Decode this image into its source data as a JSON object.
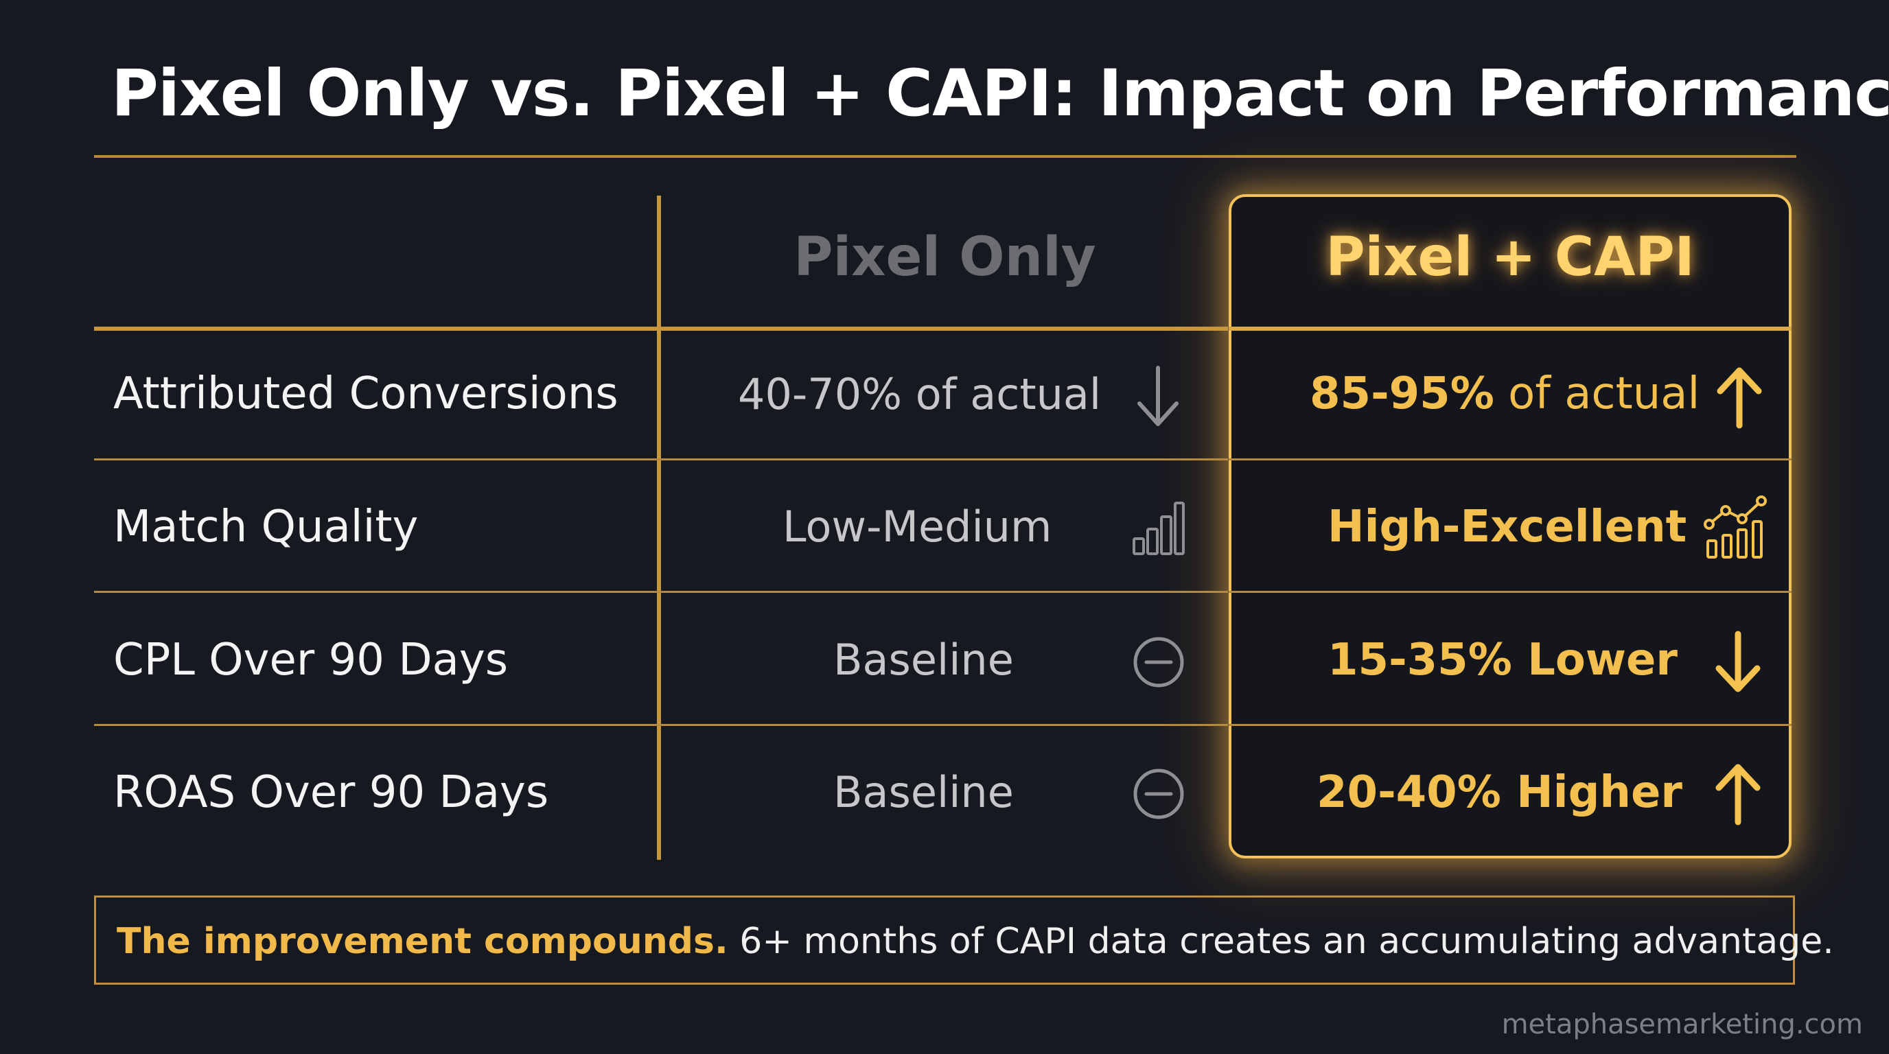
{
  "title": "Pixel Only vs. Pixel + CAPI: Impact on Performance",
  "columns": {
    "pixel_only": "Pixel Only",
    "pixel_capi": "Pixel + CAPI"
  },
  "rows": [
    {
      "label": "Attributed Conversions",
      "pixel_value": "40-70% of actual",
      "pixel_icon": "arrow-down-icon",
      "capi_value_strong": "85-95%",
      "capi_value_rest": " of actual",
      "capi_icon": "arrow-up-icon"
    },
    {
      "label": "Match Quality",
      "pixel_value": "Low-Medium",
      "pixel_icon": "bar-chart-icon",
      "capi_value_strong": "High-Excellent",
      "capi_value_rest": "",
      "capi_icon": "trend-bar-chart-icon"
    },
    {
      "label": "CPL Over 90 Days",
      "pixel_value": "Baseline",
      "pixel_icon": "minus-circle-icon",
      "capi_value_strong": "15-35% Lower",
      "capi_value_rest": "",
      "capi_icon": "arrow-down-icon"
    },
    {
      "label": "ROAS Over 90 Days",
      "pixel_value": "Baseline",
      "pixel_icon": "minus-circle-icon",
      "capi_value_strong": "20-40% Higher",
      "capi_value_rest": "",
      "capi_icon": "arrow-up-icon"
    }
  ],
  "footer": {
    "strong": "The improvement compounds.",
    "rest": " 6+ months of CAPI data creates an accumulating advantage."
  },
  "watermark": "metaphasemarketing.com",
  "colors": {
    "background": "#171921",
    "accent_gold": "#f3c04f",
    "rule_gold": "#c7963f",
    "muted_text": "#c7c7c9"
  }
}
